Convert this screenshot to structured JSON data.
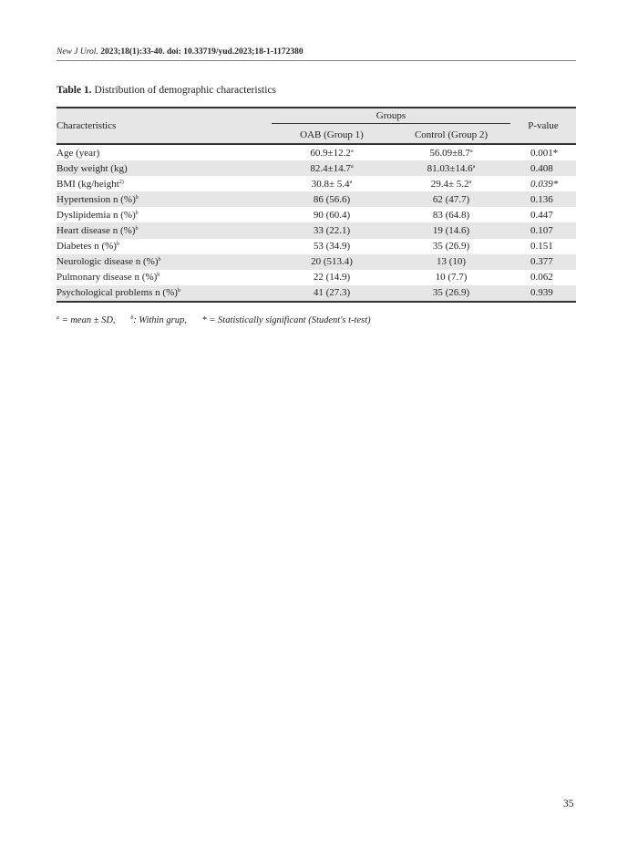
{
  "header": {
    "journal": "New J Urol.",
    "citation": "2023;18(1):33-40. doi: 10.33719/yud.2023;18-1-1172380"
  },
  "caption": {
    "label": "Table 1.",
    "text": " Distribution of demographic characteristics"
  },
  "table": {
    "col_characteristics": "Characteristics",
    "col_groups": "Groups",
    "col_oab": "OAB (Group 1)",
    "col_control": "Control (Group 2)",
    "col_p": "P-value",
    "rows": [
      {
        "label": "Age (year)",
        "label_sup": "",
        "oab": "60.9±12.2",
        "oab_sup": "a",
        "ctrl": "56.09±8.7",
        "ctrl_sup": "a",
        "p": "0.001*"
      },
      {
        "label": "Body weight (kg)",
        "label_sup": "",
        "oab": "82.4±14.7",
        "oab_sup": "a",
        "ctrl": "81.03±14.6",
        "ctrl_sup": "a",
        "p": "0.408"
      },
      {
        "label": "BMI (kg/height",
        "label_sup": "2)",
        "oab": "30.8± 5.4",
        "oab_sup": "a",
        "ctrl": "29.4± 5.2",
        "ctrl_sup": "a",
        "p": "0.039*"
      },
      {
        "label": "Hypertension n (%)",
        "label_sup": "b",
        "oab": "86 (56.6)",
        "oab_sup": "",
        "ctrl": "62 (47.7)",
        "ctrl_sup": "",
        "p": "0.136"
      },
      {
        "label": "Dyslipidemia n (%)",
        "label_sup": "b",
        "oab": "90 (60.4)",
        "oab_sup": "",
        "ctrl": "83 (64.8)",
        "ctrl_sup": "",
        "p": "0.447"
      },
      {
        "label": "Heart disease n (%)",
        "label_sup": "b",
        "oab": "33 (22.1)",
        "oab_sup": "",
        "ctrl": "19 (14.6)",
        "ctrl_sup": "",
        "p": "0.107"
      },
      {
        "label": "Diabetes n (%)",
        "label_sup": "b",
        "oab": "53 (34.9)",
        "oab_sup": "",
        "ctrl": "35 (26.9)",
        "ctrl_sup": "",
        "p": "0.151"
      },
      {
        "label": "Neurologic disease n (%)",
        "label_sup": "b",
        "oab": "20 (513.4)",
        "oab_sup": "",
        "ctrl": "13 (10)",
        "ctrl_sup": "",
        "p": "0.377"
      },
      {
        "label": "Pulmonary disease n (%)",
        "label_sup": "b",
        "oab": "22 (14.9)",
        "oab_sup": "",
        "ctrl": "10 (7.7)",
        "ctrl_sup": "",
        "p": "0.062"
      },
      {
        "label": "Psychological problems n (%)",
        "label_sup": "b",
        "oab": "41 (27.3)",
        "oab_sup": "",
        "ctrl": "35 (26.9)",
        "ctrl_sup": "",
        "p": "0.939"
      }
    ]
  },
  "footnote": {
    "a_sup": "a",
    "a_text": " = mean ± SD,",
    "b_sup": "b",
    "b_text": ": Within grup,",
    "star_text": "* = Statistically significant (Student's t-test)"
  },
  "page_number": "35"
}
